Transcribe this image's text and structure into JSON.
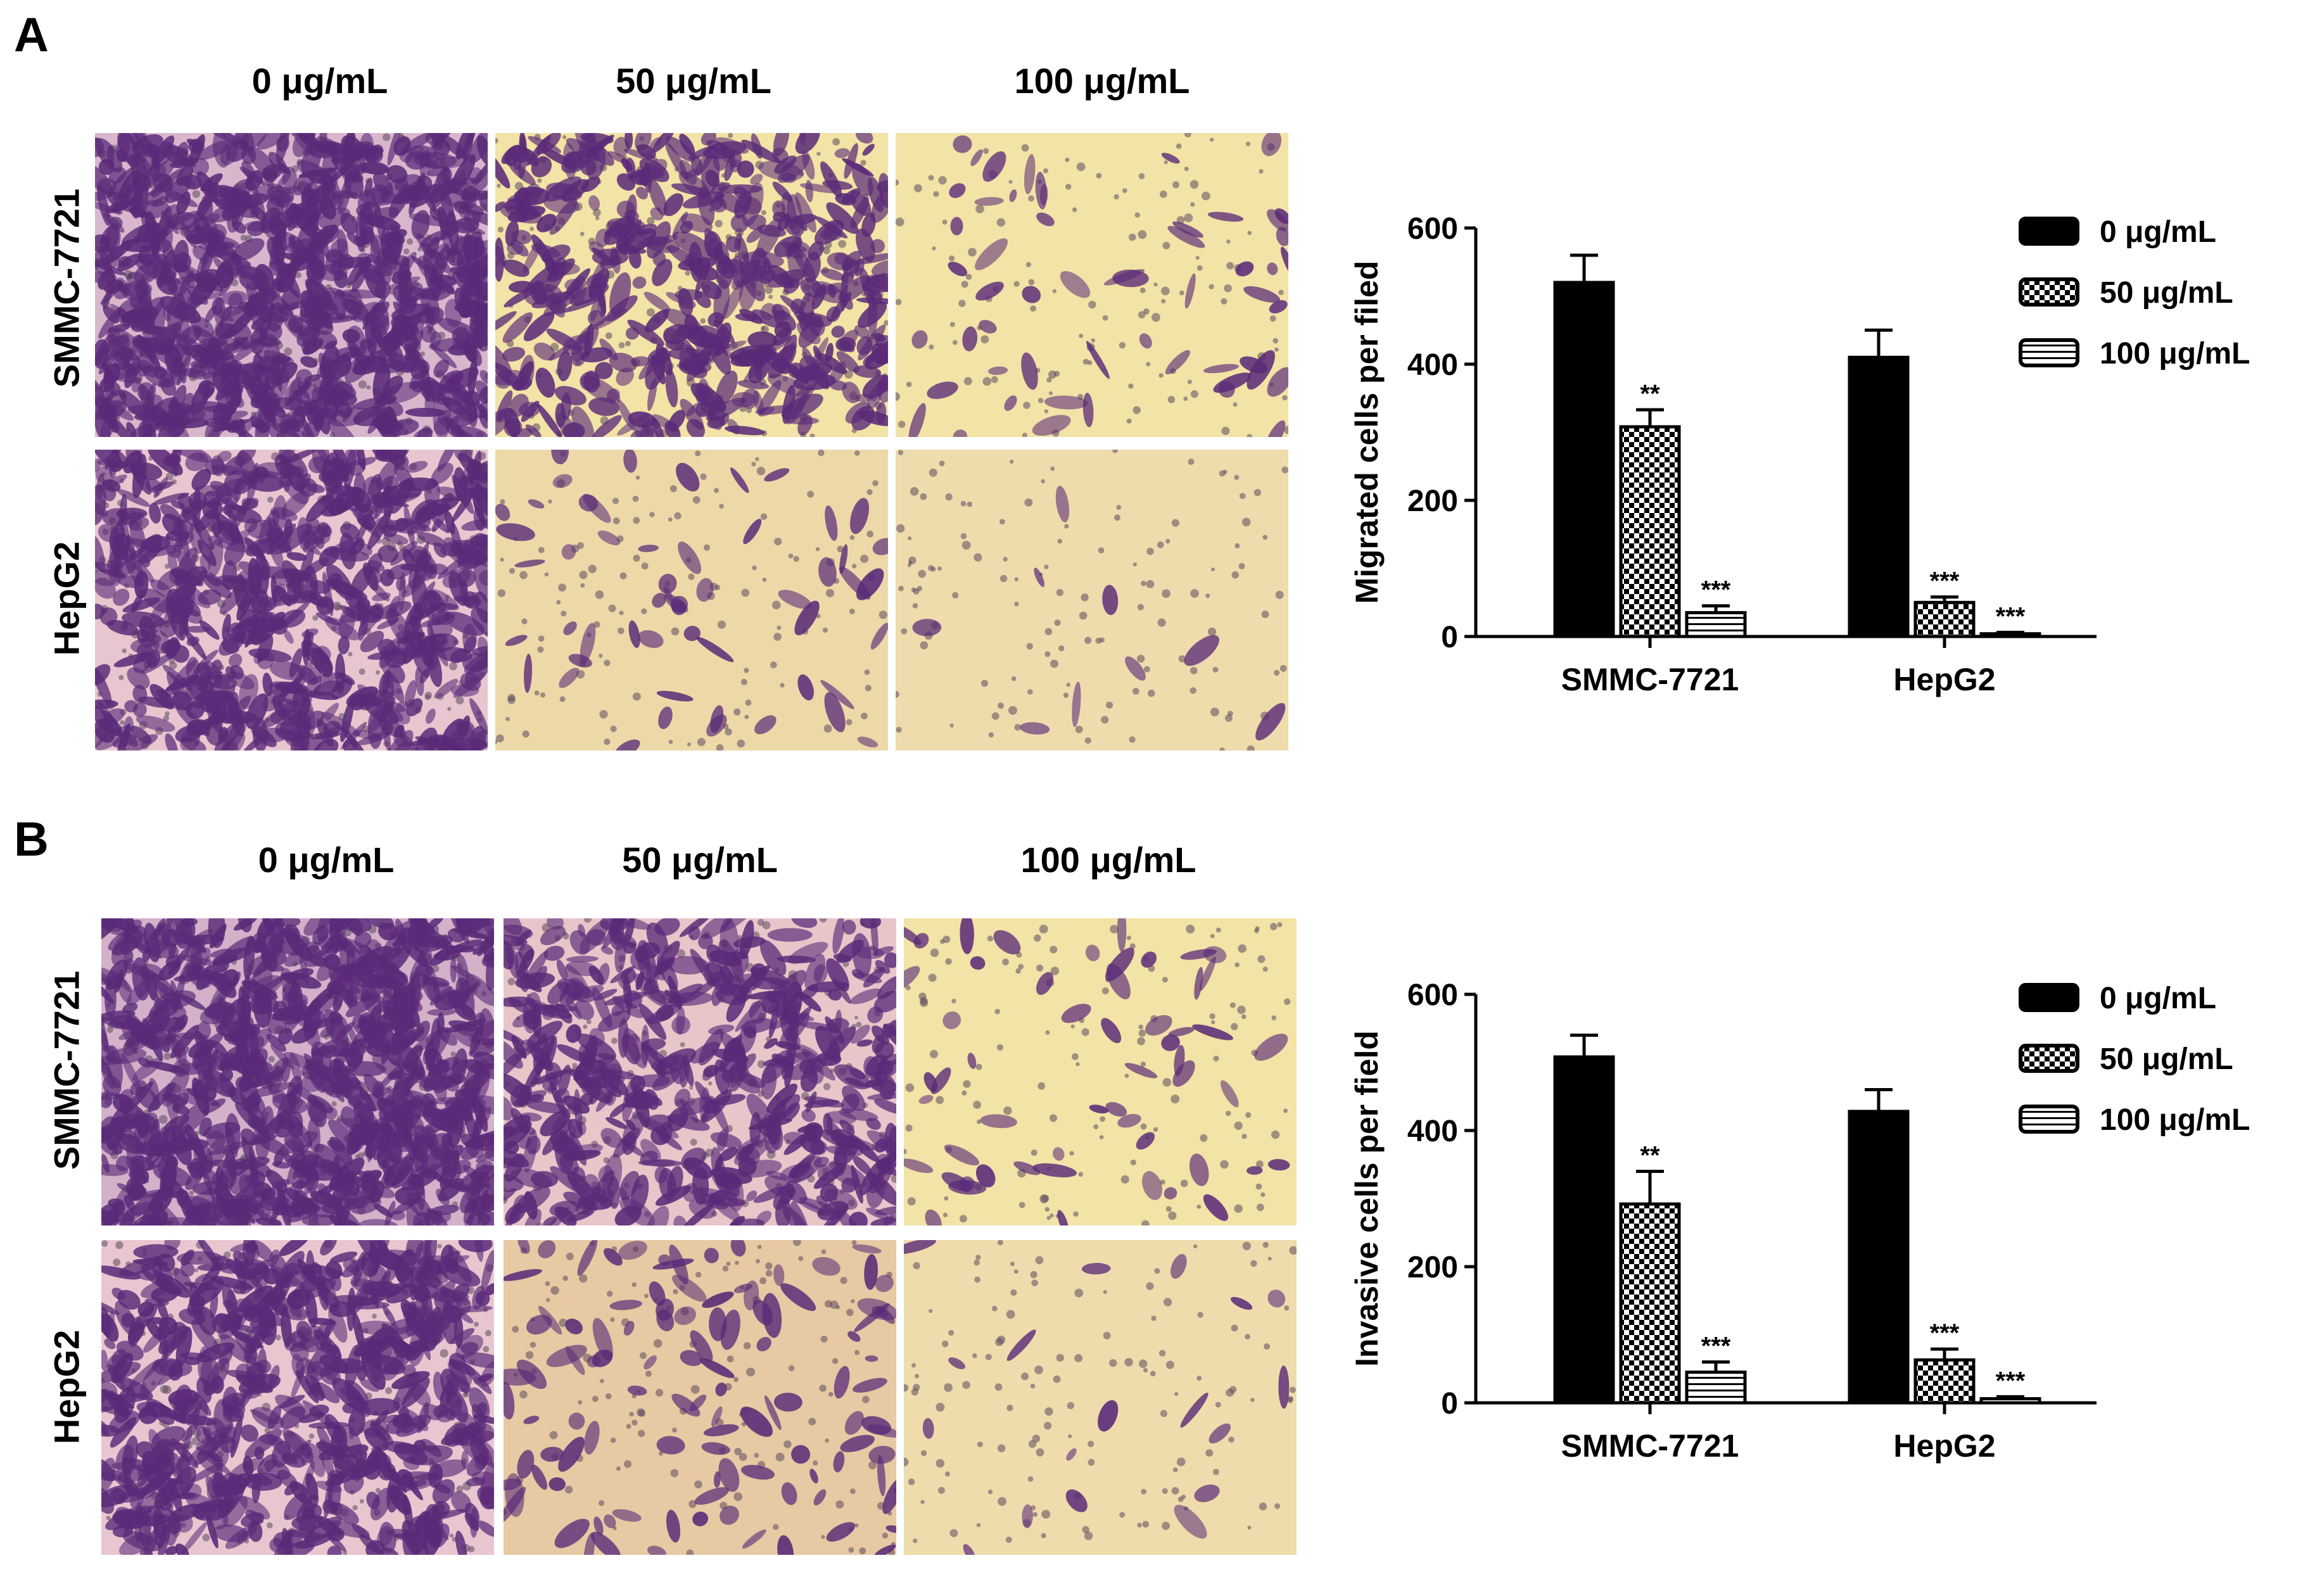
{
  "panels": [
    {
      "letter": "A",
      "concentrations": [
        "0 μg/mL",
        "50 μg/mL",
        "100 μg/mL"
      ],
      "cell_lines": [
        "SMMC-7721",
        "HepG2"
      ]
    },
    {
      "letter": "B",
      "concentrations": [
        "0 μg/mL",
        "50 μg/mL",
        "100 μg/mL"
      ],
      "cell_lines": [
        "SMMC-7721",
        "HepG2"
      ]
    }
  ],
  "colors": {
    "stain_purple": "#5a2a78",
    "background_yellow": "#f2e3a6",
    "background_pink": "#e8c6d0",
    "bar_dark": "#000000"
  },
  "chart_data": [
    {
      "type": "bar",
      "ylabel": "Migrated cells per filed",
      "xlabel": "",
      "ylim": [
        0,
        600
      ],
      "yticks": [
        0,
        200,
        400,
        600
      ],
      "categories": [
        "SMMC-7721",
        "HepG2"
      ],
      "legend_position": "top-right",
      "series": [
        {
          "name": "0 μg/mL",
          "pattern": "solid",
          "values": [
            520,
            410
          ],
          "errors": [
            40,
            40
          ],
          "significance": [
            "",
            ""
          ]
        },
        {
          "name": "50 μg/mL",
          "pattern": "checker",
          "values": [
            308,
            50
          ],
          "errors": [
            25,
            8
          ],
          "significance": [
            "**",
            "***"
          ]
        },
        {
          "name": "100 μg/mL",
          "pattern": "striped",
          "values": [
            35,
            4
          ],
          "errors": [
            10,
            2
          ],
          "significance": [
            "***",
            "***"
          ]
        }
      ]
    },
    {
      "type": "bar",
      "ylabel": "Invasive cells per field",
      "xlabel": "",
      "ylim": [
        0,
        600
      ],
      "yticks": [
        0,
        200,
        400,
        600
      ],
      "categories": [
        "SMMC-7721",
        "HepG2"
      ],
      "legend_position": "top-right",
      "series": [
        {
          "name": "0 μg/mL",
          "pattern": "solid",
          "values": [
            508,
            428
          ],
          "errors": [
            32,
            32
          ],
          "significance": [
            "",
            ""
          ]
        },
        {
          "name": "50 μg/mL",
          "pattern": "checker",
          "values": [
            292,
            63
          ],
          "errors": [
            48,
            16
          ],
          "significance": [
            "**",
            "***"
          ]
        },
        {
          "name": "100 μg/mL",
          "pattern": "striped",
          "values": [
            45,
            6
          ],
          "errors": [
            15,
            3
          ],
          "significance": [
            "***",
            "***"
          ]
        }
      ]
    }
  ]
}
